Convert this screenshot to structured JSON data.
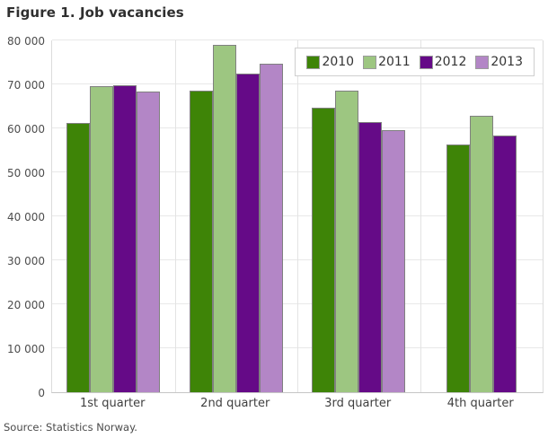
{
  "title": "Figure 1. Job vacancies",
  "source": "Source: Statistics Norway.",
  "chart_data": {
    "type": "bar",
    "title": "Figure 1. Job vacancies",
    "categories": [
      "1st quarter",
      "2nd quarter",
      "3rd quarter",
      "4th quarter"
    ],
    "series": [
      {
        "name": "2010",
        "color": "#3e8407",
        "values": [
          61300,
          68600,
          64700,
          56400
        ]
      },
      {
        "name": "2011",
        "color": "#9dc681",
        "values": [
          69600,
          78900,
          68600,
          62900
        ]
      },
      {
        "name": "2012",
        "color": "#650a87",
        "values": [
          69900,
          72500,
          61500,
          58400
        ]
      },
      {
        "name": "2013",
        "color": "#b386c6",
        "values": [
          68300,
          74700,
          59600,
          null
        ]
      }
    ],
    "ylim": [
      0,
      80000
    ],
    "ytick_step": 10000,
    "ytick_labels": [
      "0",
      "10 000",
      "20 000",
      "30 000",
      "40 000",
      "50 000",
      "60 000",
      "70 000",
      "80 000"
    ],
    "xlabel": "",
    "ylabel": "",
    "grid": true,
    "legend_position": "top-right",
    "source": "Source: Statistics Norway."
  }
}
